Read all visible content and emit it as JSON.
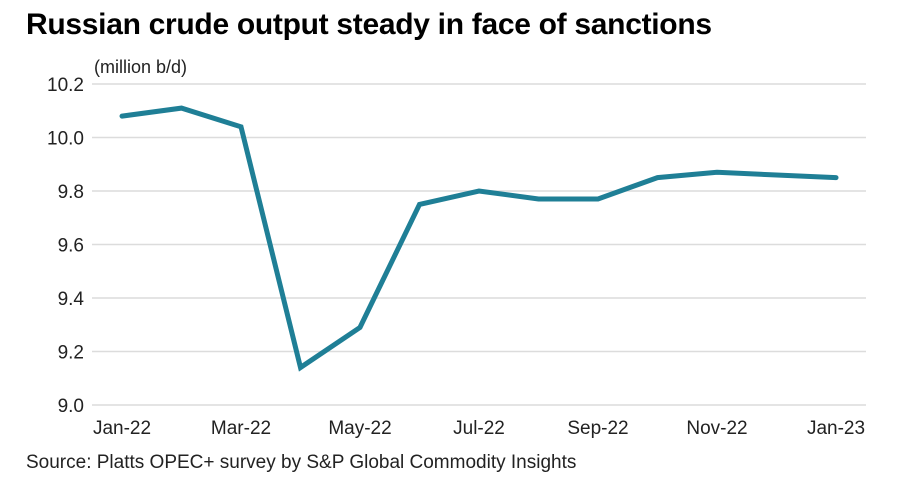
{
  "chart_data": {
    "type": "line",
    "title": "Russian crude output steady in face of sanctions",
    "ylabel": "(million b/d)",
    "xlabel": "",
    "source": "Source: Platts OPEC+ survey by S&P Global Commodity Insights",
    "ylim": [
      9.0,
      10.2
    ],
    "yticks": [
      "10.2",
      "10.0",
      "9.8",
      "9.6",
      "9.4",
      "9.2",
      "9.0"
    ],
    "ytick_values": [
      10.2,
      10.0,
      9.8,
      9.6,
      9.4,
      9.2,
      9.0
    ],
    "grid": true,
    "x": [
      "Jan-22",
      "Feb-22",
      "Mar-22",
      "Apr-22",
      "May-22",
      "Jun-22",
      "Jul-22",
      "Aug-22",
      "Sep-22",
      "Oct-22",
      "Nov-22",
      "Dec-22",
      "Jan-23"
    ],
    "xtick_labels": [
      "Jan-22",
      "Mar-22",
      "May-22",
      "Jul-22",
      "Sep-22",
      "Nov-22",
      "Jan-23"
    ],
    "xtick_indices": [
      0,
      2,
      4,
      6,
      8,
      10,
      12
    ],
    "series": [
      {
        "name": "Russian crude output",
        "color": "#1f7f96",
        "values": [
          10.08,
          10.11,
          10.04,
          9.14,
          9.29,
          9.75,
          9.8,
          9.77,
          9.77,
          9.85,
          9.87,
          9.86,
          9.85
        ]
      }
    ]
  }
}
